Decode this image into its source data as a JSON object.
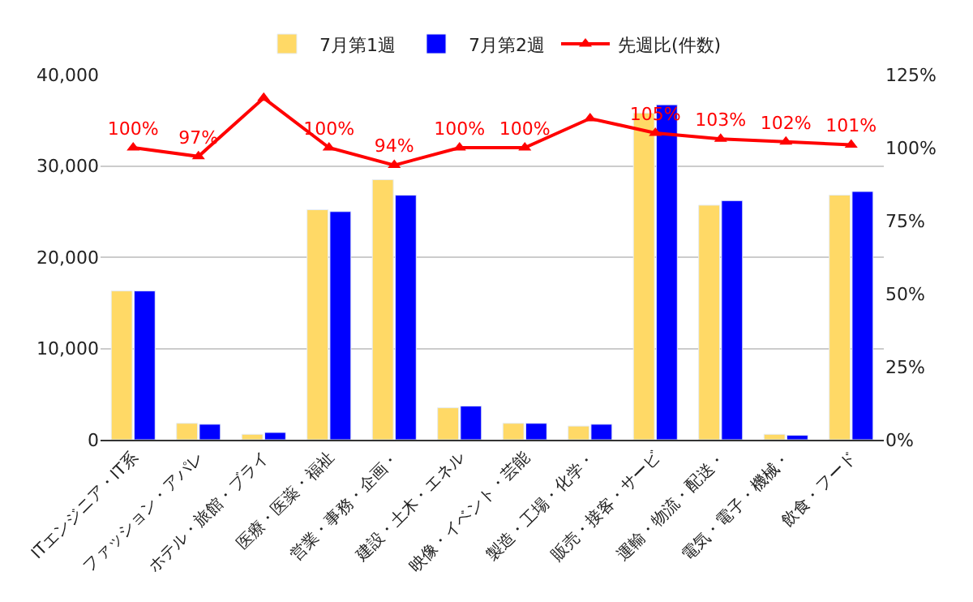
{
  "chart_data": {
    "type": "bar",
    "categories": [
      "ITエンジニア・IT系",
      "ファッション・アパレ",
      "ホテル・旅館・ブライ",
      "医療・医薬・福祉",
      "営業・事務・企画・",
      "建設・土木・エネル",
      "映像・イベント・芸能",
      "製造・工場・化学・",
      "販売・接客・サービ",
      "運輸・物流・配送・",
      "電気・電子・機械・",
      "飲食・フード"
    ],
    "series": [
      {
        "name": "7月第1週",
        "color": "#ffd966",
        "values": [
          16300,
          1800,
          600,
          25200,
          28500,
          3500,
          1800,
          1500,
          35800,
          25700,
          600,
          26800
        ]
      },
      {
        "name": "7月第2週",
        "color": "#0000ff",
        "values": [
          16300,
          1700,
          800,
          25000,
          26800,
          3700,
          1800,
          1700,
          36700,
          26200,
          500,
          27200
        ]
      },
      {
        "name": "先週比(件数)",
        "type": "line",
        "axis": "y2",
        "color": "#ff0000",
        "marker": "triangle",
        "values": [
          100,
          97,
          117,
          100,
          94,
          100,
          100,
          110,
          105,
          103,
          102,
          101
        ],
        "value_labels": [
          "100%",
          "97%",
          null,
          "100%",
          "94%",
          "100%",
          "100%",
          null,
          "105%",
          "103%",
          "102%",
          "101%"
        ]
      }
    ],
    "ylim": [
      0,
      40000
    ],
    "yticks": [
      {
        "value": 0,
        "label": "0"
      },
      {
        "value": 10000,
        "label": "10,000"
      },
      {
        "value": 20000,
        "label": "20,000"
      },
      {
        "value": 30000,
        "label": "30,000"
      },
      {
        "value": 40000,
        "label": "40,000"
      }
    ],
    "y2lim": [
      0,
      125
    ],
    "y2ticks": [
      {
        "value": 0,
        "label": "0%"
      },
      {
        "value": 25,
        "label": "25%"
      },
      {
        "value": 50,
        "label": "50%"
      },
      {
        "value": 75,
        "label": "75%"
      },
      {
        "value": 100,
        "label": "100%"
      },
      {
        "value": 125,
        "label": "125%"
      }
    ],
    "grid": "y",
    "legend": "top"
  }
}
